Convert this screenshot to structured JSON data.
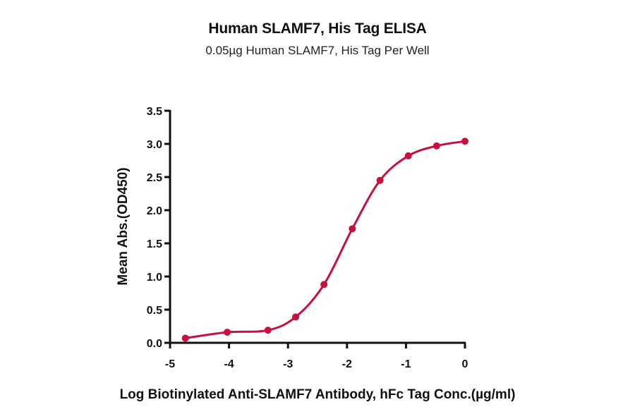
{
  "chart_data": {
    "type": "line",
    "title": "Human SLAMF7, His Tag ELISA",
    "subtitle": "0.05µg Human SLAMF7, His Tag Per Well",
    "xlabel": "Log Biotinylated Anti-SLAMF7 Antibody, hFc Tag Conc.(µg/ml)",
    "ylabel": "Mean Abs.(OD450)",
    "xlim": [
      -5,
      0
    ],
    "ylim": [
      0,
      3.5
    ],
    "x_ticks": [
      "-5",
      "-4",
      "-3",
      "-2",
      "-1",
      "0"
    ],
    "y_ticks": [
      "0.0",
      "0.5",
      "1.0",
      "1.5",
      "2.0",
      "2.5",
      "3.0",
      "3.5"
    ],
    "grid": false,
    "legend": null,
    "series": [
      {
        "name": "Human SLAMF7, His Tag",
        "color": "#c8103e",
        "fit": "4-parameter logistic curve",
        "x": [
          -4.74,
          -4.03,
          -3.34,
          -2.87,
          -2.39,
          -1.91,
          -1.44,
          -0.96,
          -0.48,
          0.0
        ],
        "y": [
          0.07,
          0.16,
          0.19,
          0.39,
          0.88,
          1.72,
          2.45,
          2.82,
          2.97,
          3.04
        ]
      }
    ]
  }
}
